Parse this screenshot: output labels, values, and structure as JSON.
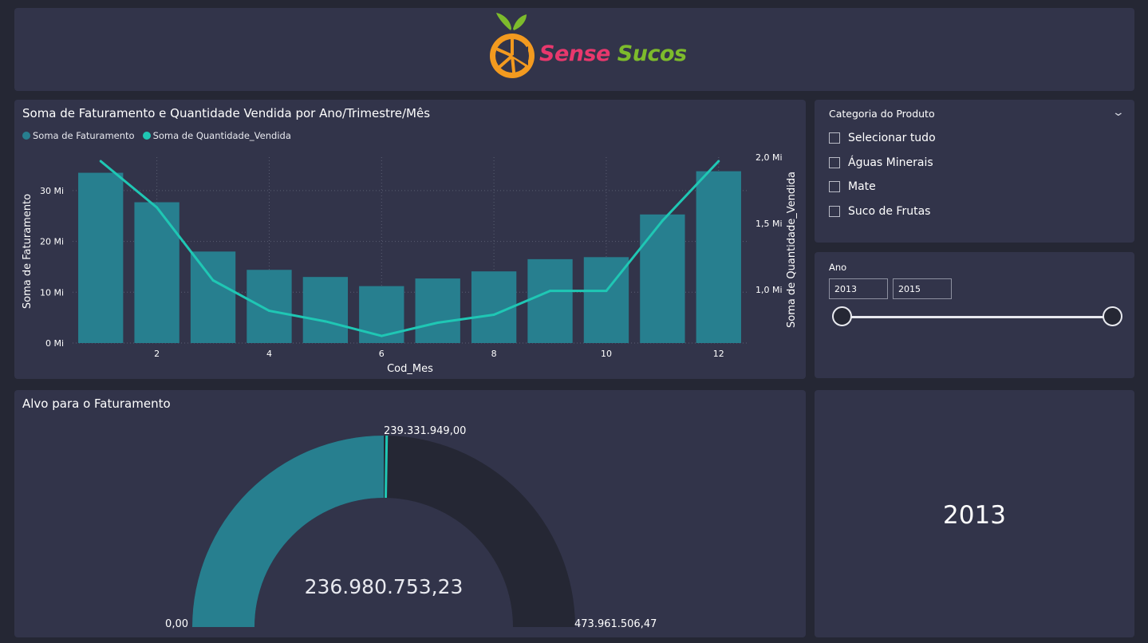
{
  "header": {
    "logo_word1": "Sense",
    "logo_word2": "Sucos"
  },
  "chart": {
    "title": "Soma de Faturamento e Quantidade Vendida por Ano/Trimestre/Mês",
    "legend": [
      "Soma de Faturamento",
      "Soma de Quantidade_Vendida"
    ]
  },
  "chart_data": {
    "type": "bar",
    "title": "Soma de Faturamento e Quantidade Vendida por Ano/Trimestre/Mês",
    "xlabel": "Cod_Mes",
    "ylabel": "Soma de Faturamento",
    "y2label": "Soma de Quantidade_Vendida",
    "categories": [
      1,
      2,
      3,
      4,
      5,
      6,
      7,
      8,
      9,
      10,
      11,
      12
    ],
    "x_tick_labels": [
      "2",
      "4",
      "6",
      "8",
      "10",
      "12"
    ],
    "y_tick_labels": [
      "0 Mi",
      "10 Mi",
      "20 Mi",
      "30 Mi"
    ],
    "y2_tick_labels": [
      "1,0 Mi",
      "1,5 Mi",
      "2,0 Mi"
    ],
    "ylim": [
      0,
      35
    ],
    "y2lim": [
      0.6,
      2.0
    ],
    "series": [
      {
        "name": "Soma de Faturamento",
        "type": "bar",
        "axis": "left",
        "values": [
          33.5,
          27.7,
          18.0,
          14.4,
          13.0,
          11.2,
          12.7,
          14.1,
          16.5,
          16.9,
          25.3,
          33.8
        ]
      },
      {
        "name": "Soma de Quantidade_Vendida",
        "type": "line",
        "axis": "right",
        "values": [
          1.97,
          1.62,
          1.07,
          0.84,
          0.76,
          0.65,
          0.75,
          0.81,
          0.99,
          0.99,
          1.52,
          1.97
        ]
      }
    ],
    "colors": {
      "bar": "#277f8f",
      "line": "#1fc7b4"
    }
  },
  "filter": {
    "title": "Categoria do Produto",
    "items": [
      "Selecionar tudo",
      "Águas Minerais",
      "Mate",
      "Suco de Frutas"
    ]
  },
  "year_slicer": {
    "label": "Ano",
    "from": "2013",
    "to": "2015"
  },
  "gauge": {
    "title": "Alvo para o Faturamento",
    "value_label": "236.980.753,23",
    "target_label": "239.331.949,00",
    "min_label": "0,00",
    "max_label": "473.961.506,47",
    "value": 236980753.23,
    "target": 239331949.0,
    "min": 0,
    "max": 473961506.47
  },
  "card": {
    "value": "2013"
  }
}
